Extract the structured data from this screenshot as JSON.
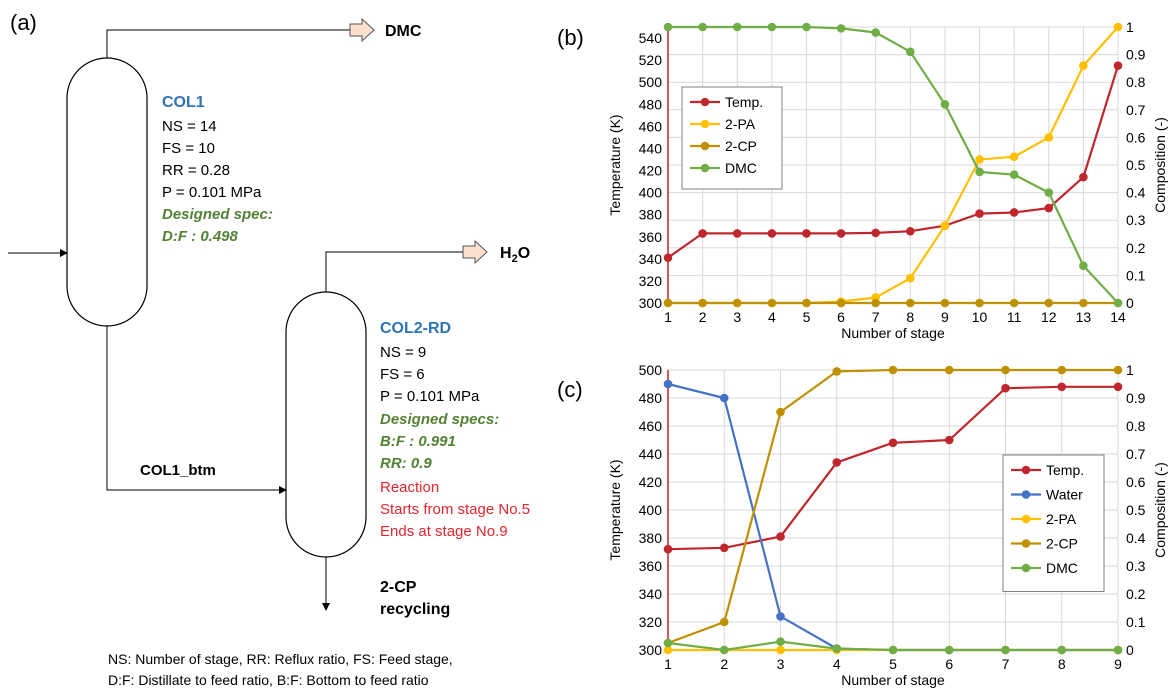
{
  "colors": {
    "temp": "#c0272d",
    "water": "#4472c4",
    "pa": "#ffc000",
    "cp": "#bf9000",
    "dmc": "#70ad47",
    "blue_label": "#2e75b6",
    "green_spec": "#548235",
    "red_text": "#e3262e",
    "grid": "#d9d9d9"
  },
  "panel_a": {
    "label": "(a)",
    "outputs": {
      "dmc": "DMC",
      "h2o_main": "H",
      "h2o_sub": "2",
      "h2o_end": "O"
    },
    "col1": {
      "name": "COL1",
      "params": [
        "NS = 14",
        "FS = 10",
        "RR = 0.28",
        "P = 0.101 MPa"
      ],
      "spec_title": "Designed spec:",
      "specs": [
        "D:F : 0.498"
      ]
    },
    "col2": {
      "name": "COL2-RD",
      "params": [
        "NS = 9",
        "FS = 6",
        "P = 0.101 MPa"
      ],
      "spec_title": "Designed specs:",
      "specs": [
        "B:F : 0.991",
        "RR: 0.9"
      ],
      "reaction": [
        "Reaction",
        "Starts from stage No.5",
        "Ends at stage No.9"
      ]
    },
    "stream_btm": "COL1_btm",
    "bottom_out": [
      "2-CP",
      "recycling"
    ],
    "footnote": [
      "NS: Number of stage, RR: Reflux ratio, FS: Feed stage,",
      "D:F: Distillate to feed ratio, B:F: Bottom to feed ratio"
    ]
  },
  "chart_data": [
    {
      "type": "line",
      "panel": "(b)",
      "xlabel": "Number of stage",
      "ylabel": "Temperature (K)",
      "y2label": "Composition (-)",
      "x": [
        1,
        2,
        3,
        4,
        5,
        6,
        7,
        8,
        9,
        10,
        11,
        12,
        13,
        14
      ],
      "ylim": [
        300,
        550
      ],
      "yticks": [
        300,
        320,
        340,
        360,
        380,
        400,
        420,
        440,
        460,
        480,
        500,
        520,
        540
      ],
      "y2lim": [
        0,
        1
      ],
      "y2ticks": [
        0,
        0.1,
        0.2,
        0.3,
        0.4,
        0.5,
        0.6,
        0.7,
        0.8,
        0.9,
        1
      ],
      "legend_position": "top-left",
      "grid": true,
      "series": [
        {
          "name": "Temp.",
          "axis": "left",
          "color": "#c0272d",
          "values": [
            341,
            363,
            363,
            363,
            363,
            363,
            363.5,
            365,
            370,
            381,
            382,
            386,
            414,
            515
          ]
        },
        {
          "name": "2-PA",
          "axis": "right",
          "color": "#ffc000",
          "values": [
            0,
            0,
            0,
            0,
            0,
            0.005,
            0.02,
            0.09,
            0.28,
            0.52,
            0.53,
            0.6,
            0.86,
            1.0
          ]
        },
        {
          "name": "2-CP",
          "axis": "right",
          "color": "#bf9000",
          "values": [
            0,
            0,
            0,
            0,
            0,
            0,
            0,
            0,
            0,
            0,
            0,
            0,
            0,
            0
          ]
        },
        {
          "name": "DMC",
          "axis": "right",
          "color": "#70ad47",
          "values": [
            1.0,
            1.0,
            1.0,
            1.0,
            1.0,
            0.995,
            0.98,
            0.91,
            0.72,
            0.475,
            0.465,
            0.4,
            0.135,
            0
          ]
        }
      ]
    },
    {
      "type": "line",
      "panel": "(c)",
      "xlabel": "Number of stage",
      "ylabel": "Temperature (K)",
      "y2label": "Composition (-)",
      "x": [
        1,
        2,
        3,
        4,
        5,
        6,
        7,
        8,
        9
      ],
      "ylim": [
        300,
        500
      ],
      "yticks": [
        300,
        320,
        340,
        360,
        380,
        400,
        420,
        440,
        460,
        480,
        500
      ],
      "y2lim": [
        0,
        1
      ],
      "y2ticks": [
        0,
        0.1,
        0.2,
        0.3,
        0.4,
        0.5,
        0.6,
        0.7,
        0.8,
        0.9,
        1
      ],
      "legend_position": "right",
      "grid": true,
      "series": [
        {
          "name": "Temp.",
          "axis": "left",
          "color": "#c0272d",
          "values": [
            372,
            373,
            381,
            434,
            448,
            450,
            487,
            488,
            488
          ]
        },
        {
          "name": "Water",
          "axis": "right",
          "color": "#4472c4",
          "values": [
            0.95,
            0.9,
            0.12,
            0.005,
            0,
            0,
            0,
            0,
            0
          ]
        },
        {
          "name": "2-PA",
          "axis": "right",
          "color": "#ffc000",
          "values": [
            0,
            0,
            0,
            0,
            0,
            0,
            0,
            0,
            0
          ]
        },
        {
          "name": "2-CP",
          "axis": "right",
          "color": "#bf9000",
          "values": [
            0.025,
            0.1,
            0.85,
            0.995,
            1.0,
            1.0,
            1.0,
            1.0,
            1.0
          ]
        },
        {
          "name": "DMC",
          "axis": "right",
          "color": "#70ad47",
          "values": [
            0.025,
            0,
            0.03,
            0.005,
            0,
            0,
            0,
            0,
            0
          ]
        }
      ]
    }
  ]
}
